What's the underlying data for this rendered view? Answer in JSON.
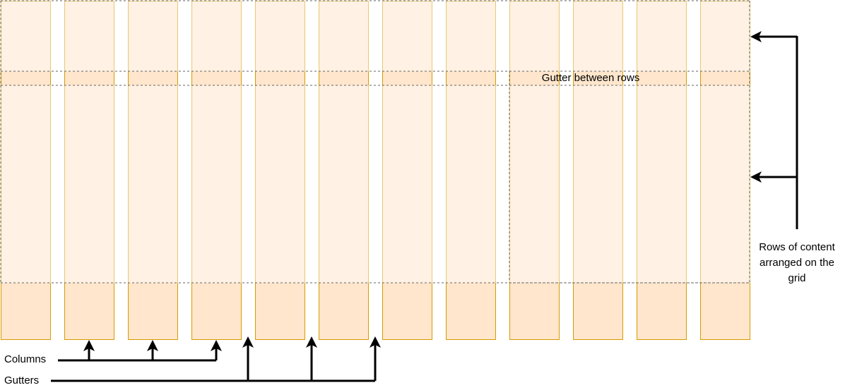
{
  "diagram": {
    "column_count": 12,
    "labels": {
      "gutter_between_rows": "Gutter between rows",
      "columns": "Columns",
      "gutters": "Gutters",
      "rows": "Rows of content arranged on the grid"
    },
    "colors": {
      "column_fill": "#ffe6cc",
      "column_stroke": "#d79b00",
      "arrow": "#000000",
      "dashed": "#666666"
    }
  }
}
